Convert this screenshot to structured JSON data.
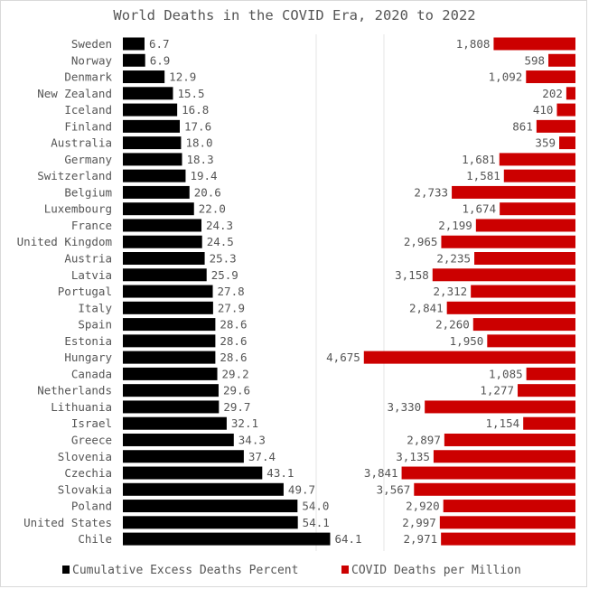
{
  "chart_data": {
    "type": "bar",
    "title": "World Deaths in the COVID Era, 2020 to 2022",
    "categories": [
      "Sweden",
      "Norway",
      "Denmark",
      "New Zealand",
      "Iceland",
      "Finland",
      "Australia",
      "Germany",
      "Switzerland",
      "Belgium",
      "Luxembourg",
      "France",
      "United Kingdom",
      "Austria",
      "Latvia",
      "Portugal",
      "Italy",
      "Spain",
      "Estonia",
      "Hungary",
      "Canada",
      "Netherlands",
      "Lithuania",
      "Israel",
      "Greece",
      "Slovenia",
      "Czechia",
      "Slovakia",
      "Poland",
      "United States",
      "Chile"
    ],
    "series": [
      {
        "name": "Cumulative Excess Deaths Percent",
        "color": "#000000",
        "values": [
          6.7,
          6.9,
          12.9,
          15.5,
          16.8,
          17.6,
          18.0,
          18.3,
          19.4,
          20.6,
          22.0,
          24.3,
          24.5,
          25.3,
          25.9,
          27.8,
          27.9,
          28.6,
          28.6,
          28.6,
          29.2,
          29.6,
          29.7,
          32.1,
          34.3,
          37.4,
          43.1,
          49.7,
          54.0,
          54.1,
          64.1
        ],
        "labels": [
          "6.7",
          "6.9",
          "12.9",
          "15.5",
          "16.8",
          "17.6",
          "18.0",
          "18.3",
          "19.4",
          "20.6",
          "22.0",
          "24.3",
          "24.5",
          "25.3",
          "25.9",
          "27.8",
          "27.9",
          "28.6",
          "28.6",
          "28.6",
          "29.2",
          "29.6",
          "29.7",
          "32.1",
          "34.3",
          "37.4",
          "43.1",
          "49.7",
          "54.0",
          "54.1",
          "64.1"
        ]
      },
      {
        "name": "COVID Deaths per Million",
        "color": "#cc0000",
        "values": [
          1808,
          598,
          1092,
          202,
          410,
          861,
          359,
          1681,
          1581,
          2733,
          1674,
          2199,
          2965,
          2235,
          3158,
          2312,
          2841,
          2260,
          1950,
          4675,
          1085,
          1277,
          3330,
          1154,
          2897,
          3135,
          3841,
          3567,
          2920,
          2997,
          2971
        ],
        "labels": [
          "1,808",
          "598",
          "1,092",
          "202",
          "410",
          "861",
          "359",
          "1,681",
          "1,581",
          "2,733",
          "1,674",
          "2,199",
          "2,965",
          "2,235",
          "3,158",
          "2,312",
          "2,841",
          "2,260",
          "1,950",
          "4,675",
          "1,085",
          "1,277",
          "3,330",
          "1,154",
          "2,897",
          "3,135",
          "3,841",
          "3,567",
          "2,920",
          "2,997",
          "2,971"
        ]
      }
    ],
    "legend_placement": "bottom"
  }
}
